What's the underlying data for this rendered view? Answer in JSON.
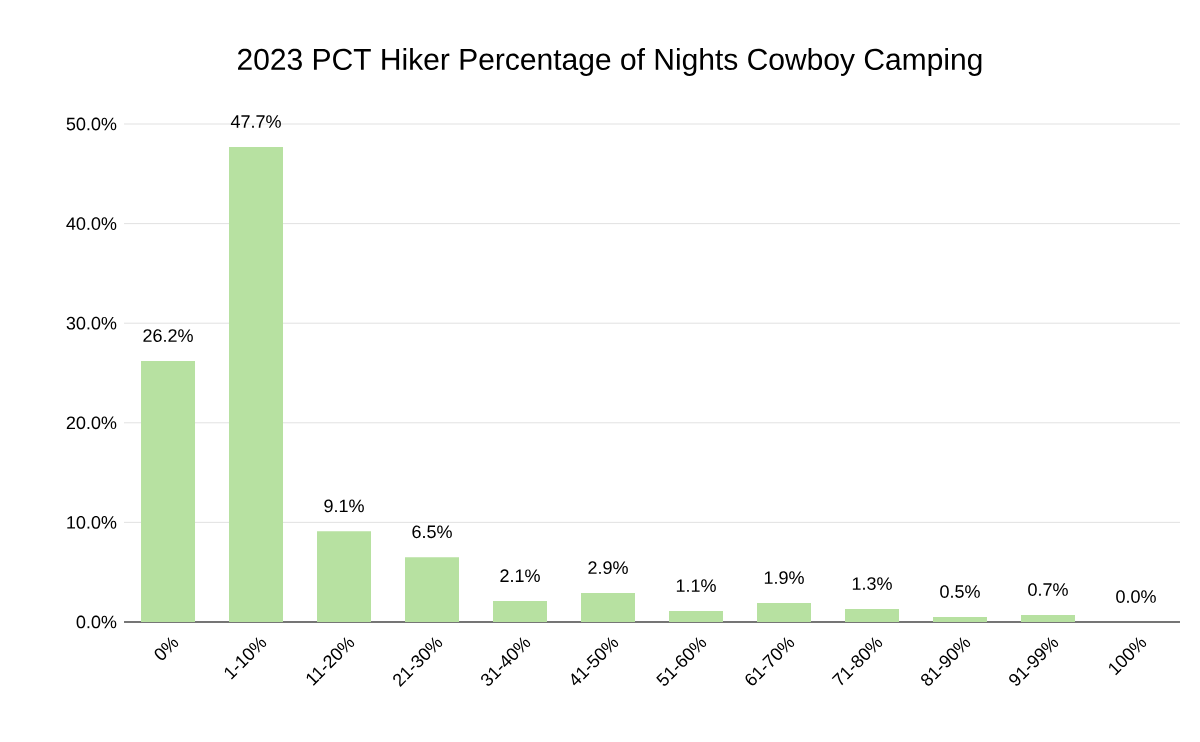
{
  "chart_data": {
    "type": "bar",
    "title": "2023 PCT Hiker Percentage of Nights Cowboy Camping",
    "categories": [
      "0%",
      "1-10%",
      "11-20%",
      "21-30%",
      "31-40%",
      "41-50%",
      "51-60%",
      "61-70%",
      "71-80%",
      "81-90%",
      "91-99%",
      "100%"
    ],
    "values": [
      26.2,
      47.7,
      9.1,
      6.5,
      2.1,
      2.9,
      1.1,
      1.9,
      1.3,
      0.5,
      0.7,
      0.0
    ],
    "value_labels": [
      "26.2%",
      "47.7%",
      "9.1%",
      "6.5%",
      "2.1%",
      "2.9%",
      "1.1%",
      "1.9%",
      "1.3%",
      "0.5%",
      "0.7%",
      "0.0%"
    ],
    "color": "#b7e1a1",
    "ylim": [
      0,
      50
    ],
    "yticks": [
      {
        "value": 0,
        "label": "0.0%"
      },
      {
        "value": 10,
        "label": "10.0%"
      },
      {
        "value": 20,
        "label": "20.0%"
      },
      {
        "value": 30,
        "label": "30.0%"
      },
      {
        "value": 40,
        "label": "40.0%"
      },
      {
        "value": 50,
        "label": "50.0%"
      }
    ],
    "grid": "y"
  }
}
